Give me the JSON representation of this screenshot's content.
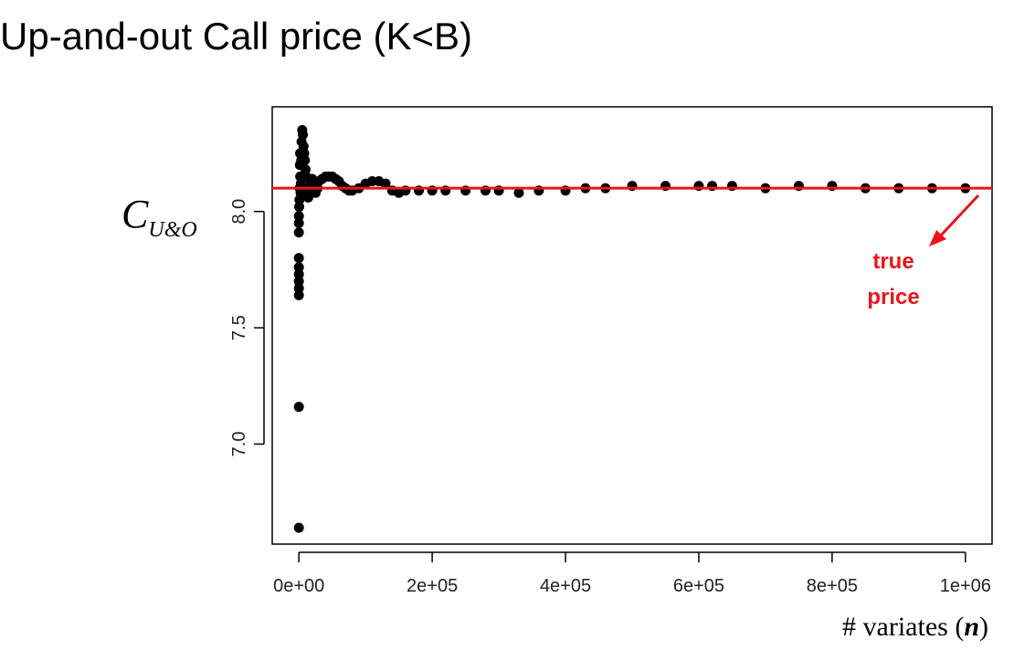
{
  "page": {
    "title": "Up-and-out Call price (K<B)"
  },
  "chart_data": {
    "type": "scatter",
    "title": "",
    "xlabel": "# variates (n)",
    "ylabel_main": "C",
    "ylabel_sub": "U&O",
    "xlim": [
      -40000,
      1040000
    ],
    "ylim": [
      6.57,
      8.45
    ],
    "x_ticks": [
      0,
      200000,
      400000,
      600000,
      800000,
      1000000
    ],
    "x_tick_labels": [
      "0e+00",
      "2e+05",
      "4e+05",
      "6e+05",
      "8e+05",
      "1e+06"
    ],
    "y_ticks": [
      7.0,
      7.5,
      8.0
    ],
    "y_tick_labels": [
      "7.0",
      "7.5",
      "8.0"
    ],
    "true_price": 8.1,
    "reference_line_color": "#e8141c",
    "point_color": "#000000",
    "annotation": {
      "line1": "true",
      "line2": "price",
      "color": "#e8141c"
    },
    "points": [
      [
        0,
        6.64
      ],
      [
        0,
        7.16
      ],
      [
        0,
        7.64
      ],
      [
        0,
        7.67
      ],
      [
        0,
        7.7
      ],
      [
        0,
        7.73
      ],
      [
        0,
        7.76
      ],
      [
        0,
        7.8
      ],
      [
        0,
        7.91
      ],
      [
        0,
        7.95
      ],
      [
        0,
        7.98
      ],
      [
        500,
        8.02
      ],
      [
        800,
        8.05
      ],
      [
        1000,
        8.1
      ],
      [
        1500,
        8.2
      ],
      [
        1800,
        8.25
      ],
      [
        2000,
        8.15
      ],
      [
        2500,
        8.08
      ],
      [
        3000,
        8.12
      ],
      [
        3500,
        8.22
      ],
      [
        4000,
        8.3
      ],
      [
        5000,
        8.35
      ],
      [
        6000,
        8.33
      ],
      [
        7000,
        8.28
      ],
      [
        8000,
        8.25
      ],
      [
        9000,
        8.22
      ],
      [
        10000,
        8.18
      ],
      [
        11000,
        8.15
      ],
      [
        12000,
        8.1
      ],
      [
        13000,
        8.08
      ],
      [
        14000,
        8.06
      ],
      [
        15000,
        8.07
      ],
      [
        16000,
        8.09
      ],
      [
        17000,
        8.11
      ],
      [
        18000,
        8.13
      ],
      [
        20000,
        8.14
      ],
      [
        22000,
        8.1
      ],
      [
        25000,
        8.08
      ],
      [
        28000,
        8.1
      ],
      [
        30000,
        8.13
      ],
      [
        35000,
        8.14
      ],
      [
        40000,
        8.15
      ],
      [
        45000,
        8.15
      ],
      [
        50000,
        8.15
      ],
      [
        55000,
        8.14
      ],
      [
        60000,
        8.13
      ],
      [
        65000,
        8.11
      ],
      [
        70000,
        8.1
      ],
      [
        75000,
        8.09
      ],
      [
        80000,
        8.09
      ],
      [
        90000,
        8.1
      ],
      [
        100000,
        8.12
      ],
      [
        110000,
        8.13
      ],
      [
        120000,
        8.13
      ],
      [
        130000,
        8.12
      ],
      [
        140000,
        8.09
      ],
      [
        150000,
        8.08
      ],
      [
        160000,
        8.09
      ],
      [
        180000,
        8.09
      ],
      [
        200000,
        8.09
      ],
      [
        220000,
        8.09
      ],
      [
        250000,
        8.09
      ],
      [
        280000,
        8.09
      ],
      [
        300000,
        8.09
      ],
      [
        330000,
        8.08
      ],
      [
        360000,
        8.09
      ],
      [
        400000,
        8.09
      ],
      [
        430000,
        8.1
      ],
      [
        460000,
        8.1
      ],
      [
        500000,
        8.11
      ],
      [
        550000,
        8.11
      ],
      [
        600000,
        8.11
      ],
      [
        620000,
        8.11
      ],
      [
        650000,
        8.11
      ],
      [
        700000,
        8.1
      ],
      [
        750000,
        8.11
      ],
      [
        800000,
        8.11
      ],
      [
        850000,
        8.1
      ],
      [
        900000,
        8.1
      ],
      [
        950000,
        8.1
      ],
      [
        1000000,
        8.1
      ]
    ]
  }
}
